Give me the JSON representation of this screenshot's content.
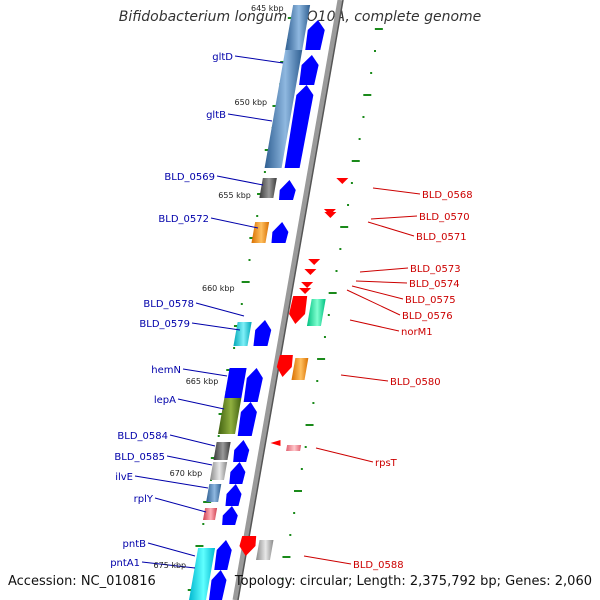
{
  "title": "Bifidobacterium longum DJO10A, complete genome",
  "accession_text": "Accession: NC_010816",
  "summary_text": "Topology: circular; Length: 2,375,792 bp; Genes: 2,060",
  "colors": {
    "backbone": "#9a9a9a",
    "forward_arrow": "#0000ff",
    "reverse_arrow": "#ff0000",
    "left_label": "#0000aa",
    "right_label": "#cc0000",
    "tick": "#1a8a1a"
  },
  "scale_labels": [
    "645 kbp",
    "650 kbp",
    "655 kbp",
    "660 kbp",
    "665 kbp",
    "670 kbp",
    "675 kbp"
  ],
  "left_genes": [
    "gltD",
    "gltB",
    "BLD_0569",
    "BLD_0572",
    "BLD_0578",
    "BLD_0579",
    "hemN",
    "lepA",
    "BLD_0584",
    "BLD_0585",
    "ilvE",
    "rplY",
    "pntB",
    "pntA1"
  ],
  "right_genes": [
    "BLD_0568",
    "BLD_0570",
    "BLD_0571",
    "BLD_0573",
    "BLD_0574",
    "BLD_0575",
    "BLD_0576",
    "norM1",
    "BLD_0580",
    "rpsT",
    "BLD_0588"
  ]
}
